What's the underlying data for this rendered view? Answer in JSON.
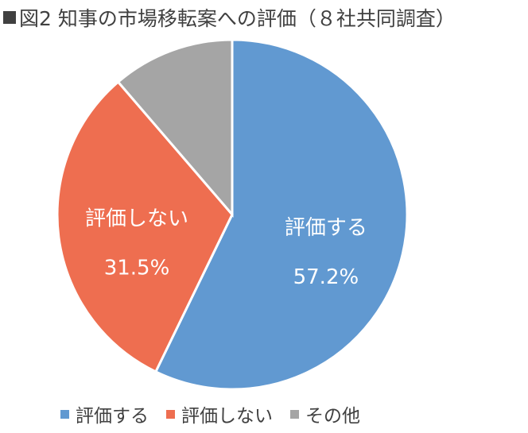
{
  "title": "図2 知事の市場移転案への評価（８社共同調査）",
  "chart_data": {
    "type": "pie",
    "title": "図2 知事の市場移転案への評価（８社共同調査）",
    "slices": [
      {
        "label": "評価する",
        "value": 57.2,
        "value_label": "57.2%",
        "color": "#6199D1"
      },
      {
        "label": "評価しない",
        "value": 31.5,
        "value_label": "31.5%",
        "color": "#EE6E50"
      },
      {
        "label": "その他",
        "value": 11.3,
        "value_label": "",
        "color": "#A5A5A5"
      }
    ],
    "start_angle": "12 o'clock",
    "direction": "clockwise",
    "legend_position": "bottom"
  }
}
